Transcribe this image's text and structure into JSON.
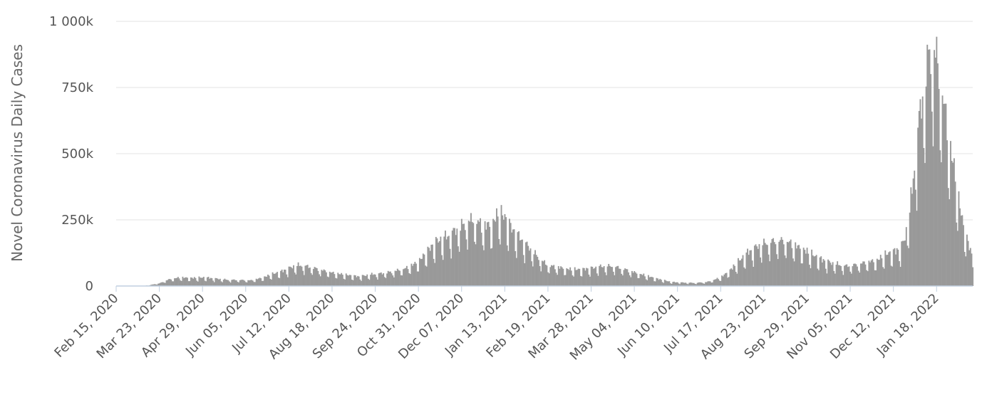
{
  "chart_data": {
    "type": "bar",
    "title": "",
    "xlabel": "",
    "ylabel": "Novel Coronavirus Daily Cases",
    "ylim": [
      0,
      1000000
    ],
    "yticks": [
      {
        "value": 0,
        "label": "0"
      },
      {
        "value": 250000,
        "label": "250k"
      },
      {
        "value": 500000,
        "label": "500k"
      },
      {
        "value": 750000,
        "label": "750k"
      },
      {
        "value": 1000000,
        "label": "1 000k"
      }
    ],
    "x_start": "2020-02-15",
    "x_end": "2022-02-18",
    "xticks": [
      {
        "date": "2020-02-15",
        "label": "Feb 15, 2020"
      },
      {
        "date": "2020-03-23",
        "label": "Mar 23, 2020"
      },
      {
        "date": "2020-04-29",
        "label": "Apr 29, 2020"
      },
      {
        "date": "2020-06-05",
        "label": "Jun 05, 2020"
      },
      {
        "date": "2020-07-12",
        "label": "Jul 12, 2020"
      },
      {
        "date": "2020-08-18",
        "label": "Aug 18, 2020"
      },
      {
        "date": "2020-09-24",
        "label": "Sep 24, 2020"
      },
      {
        "date": "2020-10-31",
        "label": "Oct 31, 2020"
      },
      {
        "date": "2020-12-07",
        "label": "Dec 07, 2020"
      },
      {
        "date": "2021-01-13",
        "label": "Jan 13, 2021"
      },
      {
        "date": "2021-02-19",
        "label": "Feb 19, 2021"
      },
      {
        "date": "2021-03-28",
        "label": "Mar 28, 2021"
      },
      {
        "date": "2021-05-04",
        "label": "May 04, 2021"
      },
      {
        "date": "2021-06-10",
        "label": "Jun 10, 2021"
      },
      {
        "date": "2021-07-17",
        "label": "Jul 17, 2021"
      },
      {
        "date": "2021-08-23",
        "label": "Aug 23, 2021"
      },
      {
        "date": "2021-09-29",
        "label": "Sep 29, 2021"
      },
      {
        "date": "2021-11-05",
        "label": "Nov 05, 2021"
      },
      {
        "date": "2021-12-12",
        "label": "Dec 12, 2021"
      },
      {
        "date": "2022-01-18",
        "label": "Jan 18, 2022"
      }
    ],
    "series": [
      {
        "color": "#999999",
        "points": [
          [
            "2020-02-15",
            50
          ],
          [
            "2020-03-05",
            200
          ],
          [
            "2020-03-10",
            1000
          ],
          [
            "2020-03-15",
            3000
          ],
          [
            "2020-03-20",
            8000
          ],
          [
            "2020-03-23",
            9000
          ],
          [
            "2020-03-27",
            17000
          ],
          [
            "2020-04-01",
            24000
          ],
          [
            "2020-04-05",
            27000
          ],
          [
            "2020-04-10",
            30000
          ],
          [
            "2020-04-20",
            28000
          ],
          [
            "2020-05-01",
            30000
          ],
          [
            "2020-05-10",
            26000
          ],
          [
            "2020-05-20",
            22000
          ],
          [
            "2020-06-01",
            21000
          ],
          [
            "2020-06-10",
            20000
          ],
          [
            "2020-06-20",
            30000
          ],
          [
            "2020-06-28",
            42000
          ],
          [
            "2020-07-05",
            50000
          ],
          [
            "2020-07-12",
            62000
          ],
          [
            "2020-07-18",
            72000
          ],
          [
            "2020-07-24",
            72000
          ],
          [
            "2020-08-01",
            65000
          ],
          [
            "2020-08-10",
            55000
          ],
          [
            "2020-08-20",
            45000
          ],
          [
            "2020-09-01",
            38000
          ],
          [
            "2020-09-10",
            33000
          ],
          [
            "2020-09-20",
            40000
          ],
          [
            "2020-10-01",
            45000
          ],
          [
            "2020-10-10",
            52000
          ],
          [
            "2020-10-20",
            62000
          ],
          [
            "2020-10-31",
            85000
          ],
          [
            "2020-11-07",
            120000
          ],
          [
            "2020-11-15",
            155000
          ],
          [
            "2020-11-25",
            175000
          ],
          [
            "2020-12-05",
            205000
          ],
          [
            "2020-12-12",
            225000
          ],
          [
            "2020-12-18",
            235000
          ],
          [
            "2020-12-25",
            210000
          ],
          [
            "2021-01-02",
            215000
          ],
          [
            "2021-01-08",
            260000
          ],
          [
            "2021-01-13",
            240000
          ],
          [
            "2021-01-20",
            195000
          ],
          [
            "2021-01-28",
            160000
          ],
          [
            "2021-02-05",
            125000
          ],
          [
            "2021-02-12",
            95000
          ],
          [
            "2021-02-19",
            72000
          ],
          [
            "2021-03-01",
            65000
          ],
          [
            "2021-03-10",
            58000
          ],
          [
            "2021-03-20",
            58000
          ],
          [
            "2021-03-28",
            62000
          ],
          [
            "2021-04-05",
            68000
          ],
          [
            "2021-04-15",
            70000
          ],
          [
            "2021-04-25",
            60000
          ],
          [
            "2021-05-04",
            48000
          ],
          [
            "2021-05-15",
            35000
          ],
          [
            "2021-05-25",
            24000
          ],
          [
            "2021-06-05",
            14000
          ],
          [
            "2021-06-15",
            12000
          ],
          [
            "2021-06-25",
            11000
          ],
          [
            "2021-07-05",
            14000
          ],
          [
            "2021-07-10",
            20000
          ],
          [
            "2021-07-17",
            30000
          ],
          [
            "2021-07-25",
            55000
          ],
          [
            "2021-08-01",
            85000
          ],
          [
            "2021-08-10",
            120000
          ],
          [
            "2021-08-20",
            145000
          ],
          [
            "2021-09-01",
            158000
          ],
          [
            "2021-09-10",
            160000
          ],
          [
            "2021-09-20",
            140000
          ],
          [
            "2021-09-29",
            120000
          ],
          [
            "2021-10-10",
            95000
          ],
          [
            "2021-10-20",
            80000
          ],
          [
            "2021-11-01",
            70000
          ],
          [
            "2021-11-10",
            75000
          ],
          [
            "2021-11-20",
            85000
          ],
          [
            "2021-11-28",
            90000
          ],
          [
            "2021-12-05",
            110000
          ],
          [
            "2021-12-12",
            120000
          ],
          [
            "2021-12-18",
            130000
          ],
          [
            "2021-12-22",
            170000
          ],
          [
            "2021-12-26",
            260000
          ],
          [
            "2021-12-30",
            420000
          ],
          [
            "2022-01-03",
            580000
          ],
          [
            "2022-01-07",
            700000
          ],
          [
            "2022-01-11",
            800000
          ],
          [
            "2022-01-14",
            850000
          ],
          [
            "2022-01-18",
            800000
          ],
          [
            "2022-01-21",
            720000
          ],
          [
            "2022-01-25",
            620000
          ],
          [
            "2022-01-29",
            500000
          ],
          [
            "2022-02-02",
            410000
          ],
          [
            "2022-02-06",
            300000
          ],
          [
            "2022-02-10",
            210000
          ],
          [
            "2022-02-14",
            150000
          ],
          [
            "2022-02-18",
            100000
          ]
        ]
      }
    ]
  }
}
